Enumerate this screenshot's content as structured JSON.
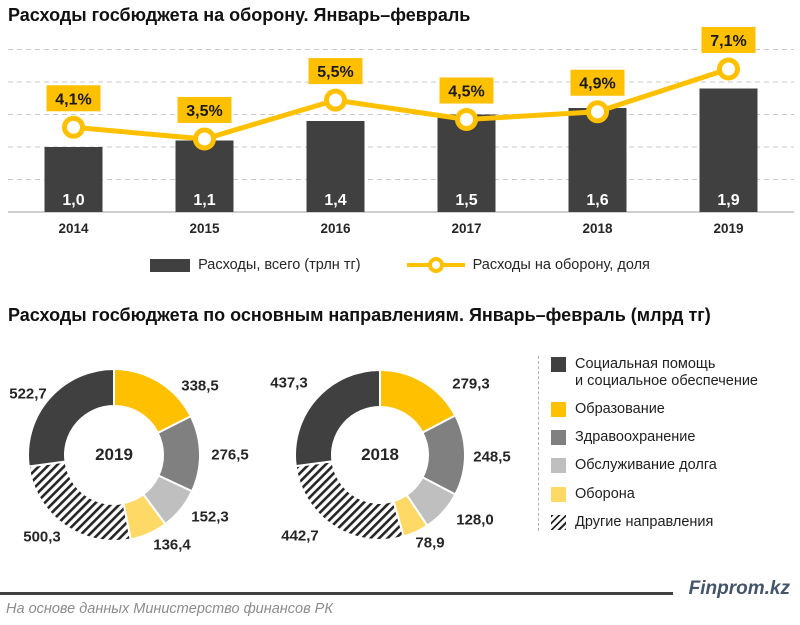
{
  "titles": {
    "defense": "Расходы госбюджета на оборону. Январь–февраль",
    "directions": "Расходы госбюджета по основным направлениям. Январь–февраль (млрд тг)"
  },
  "footer": {
    "source": "На основе данных Министерство финансов РК",
    "brand": "Finprom.kz"
  },
  "colors": {
    "accent_gold": "#FFC000",
    "bar_dark": "#404040",
    "gray": "#808080",
    "light_gray": "#BFBFBF",
    "light_gold": "#FFD966",
    "brand_blue": "#44546A",
    "gridline": "#c9c9c9"
  },
  "chart_data": [
    {
      "type": "bar",
      "subtype": "combo-bar-line",
      "title": "Расходы госбюджета на оборону. Январь–февраль",
      "categories": [
        "2014",
        "2015",
        "2016",
        "2017",
        "2018",
        "2019"
      ],
      "series": [
        {
          "name": "Расходы, всего (трлн тг)",
          "type": "bar",
          "values": [
            1.0,
            1.1,
            1.4,
            1.5,
            1.6,
            1.9
          ],
          "labels": [
            "1,0",
            "1,1",
            "1,4",
            "1,5",
            "1,6",
            "1,9"
          ],
          "color": "#404040"
        },
        {
          "name": "Расходы на оборону, доля",
          "type": "line",
          "values": [
            4.1,
            3.5,
            5.5,
            4.5,
            4.9,
            7.1
          ],
          "labels": [
            "4,1%",
            "3,5%",
            "5,5%",
            "4,5%",
            "4,9%",
            "7,1%"
          ],
          "color": "#FFC000"
        }
      ],
      "ylim": [
        0,
        2.5
      ],
      "grid": "horizontal-dashed",
      "legend_position": "bottom"
    },
    {
      "type": "pie",
      "subtype": "donut",
      "center_label": "2019",
      "slices": [
        {
          "name": "Образование",
          "value": 338.5,
          "label": "338,5",
          "fill": "#FFC000"
        },
        {
          "name": "Здравоохранение",
          "value": 276.5,
          "label": "276,5",
          "fill": "#808080"
        },
        {
          "name": "Обслуживание долга",
          "value": 152.3,
          "label": "152,3",
          "fill": "#BFBFBF"
        },
        {
          "name": "Оборона",
          "value": 136.4,
          "label": "136,4",
          "fill": "#FFD966"
        },
        {
          "name": "Другие направления",
          "value": 500.3,
          "label": "500,3",
          "fill": "hatch"
        },
        {
          "name": "Социальная помощь и социальное обеспечение",
          "value": 522.7,
          "label": "522,7",
          "fill": "#404040"
        }
      ]
    },
    {
      "type": "pie",
      "subtype": "donut",
      "center_label": "2018",
      "slices": [
        {
          "name": "Образование",
          "value": 279.3,
          "label": "279,3",
          "fill": "#FFC000"
        },
        {
          "name": "Здравоохранение",
          "value": 248.5,
          "label": "248,5",
          "fill": "#808080"
        },
        {
          "name": "Обслуживание долга",
          "value": 128.0,
          "label": "128,0",
          "fill": "#BFBFBF"
        },
        {
          "name": "Оборона",
          "value": 78.9,
          "label": "78,9",
          "fill": "#FFD966"
        },
        {
          "name": "Другие направления",
          "value": 442.7,
          "label": "442,7",
          "fill": "hatch"
        },
        {
          "name": "Социальная помощь и социальное обеспечение",
          "value": 437.3,
          "label": "437,3",
          "fill": "#404040"
        }
      ]
    }
  ],
  "donut_legend": {
    "items": [
      {
        "label": "Социальная помощь\nи социальное обеспечение",
        "fill": "dark"
      },
      {
        "label": "Образование",
        "fill": "gold"
      },
      {
        "label": "Здравоохранение",
        "fill": "gray"
      },
      {
        "label": "Обслуживание долга",
        "fill": "light_gray"
      },
      {
        "label": "Оборона",
        "fill": "light_gold"
      },
      {
        "label": "Другие направления",
        "fill": "hatch"
      }
    ]
  }
}
